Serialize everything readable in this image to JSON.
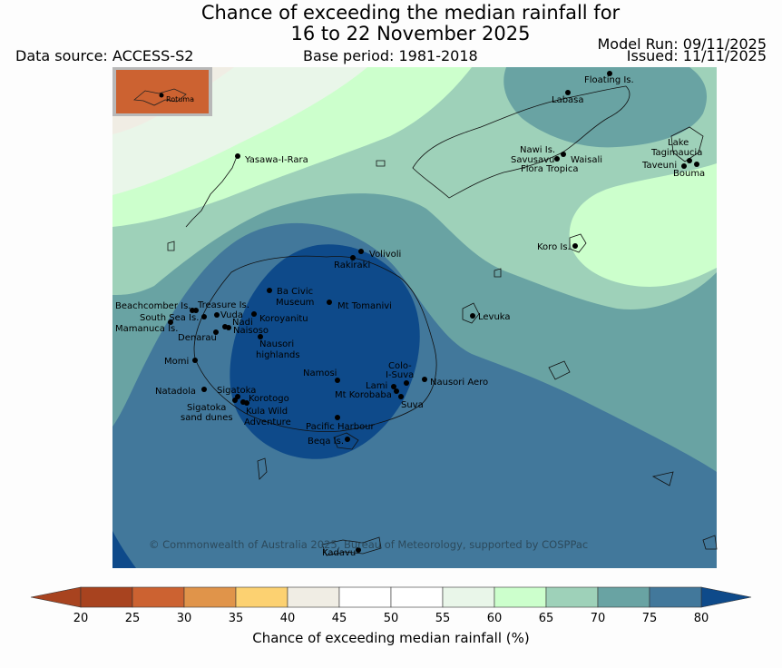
{
  "title": {
    "line1": "Chance of exceeding the median rainfall for",
    "line2": "16 to 22 November 2025"
  },
  "header": {
    "data_source": "Data source: ACCESS-S2",
    "base_period": "Base period: 1981-2018",
    "model_run": "Model Run: 09/11/2025",
    "issued": "Issued: 11/11/2025"
  },
  "inset": {
    "label": "Rotuma"
  },
  "places": [
    {
      "id": "floating-is",
      "label": "Floating Is."
    },
    {
      "id": "labasa",
      "label": "Labasa"
    },
    {
      "id": "nawi-is",
      "label": "Nawi Is."
    },
    {
      "id": "savusavu",
      "label": "Savusavu"
    },
    {
      "id": "waisali",
      "label": "Waisali"
    },
    {
      "id": "flora-tropica",
      "label": "Flora Tropica"
    },
    {
      "id": "lake-tagimaucia",
      "label": "Lake Tagimaucia"
    },
    {
      "id": "taveuni",
      "label": "Taveuni"
    },
    {
      "id": "bouma",
      "label": "Bouma"
    },
    {
      "id": "yasawa-i-rara",
      "label": "Yasawa-I-Rara"
    },
    {
      "id": "koro-is",
      "label": "Koro Is."
    },
    {
      "id": "volivoli",
      "label": "Volivoli"
    },
    {
      "id": "rakiraki",
      "label": "Rakiraki"
    },
    {
      "id": "ba-civic-museum",
      "label": "Ba Civic Museum"
    },
    {
      "id": "mt-tomanivi",
      "label": "Mt Tomanivi"
    },
    {
      "id": "beachcomber-is",
      "label": "Beachcomber Is."
    },
    {
      "id": "treasure-is",
      "label": "Treasure Is."
    },
    {
      "id": "south-sea-is",
      "label": "South Sea Is."
    },
    {
      "id": "vuda",
      "label": "Vuda"
    },
    {
      "id": "nadi",
      "label": "Nadi"
    },
    {
      "id": "koroyanitu",
      "label": "Koroyanitu"
    },
    {
      "id": "mamanuca-is",
      "label": "Mamanuca Is."
    },
    {
      "id": "naisoso",
      "label": "Naisoso"
    },
    {
      "id": "denarau",
      "label": "Denarau"
    },
    {
      "id": "nausori-highlands",
      "label": "Nausori highlands"
    },
    {
      "id": "levuka",
      "label": "Levuka"
    },
    {
      "id": "momi",
      "label": "Momi"
    },
    {
      "id": "namosi",
      "label": "Namosi"
    },
    {
      "id": "colo-i-suva",
      "label": "Colo-I-Suva"
    },
    {
      "id": "lami",
      "label": "Lami"
    },
    {
      "id": "nausori-aero",
      "label": "Nausori Aero"
    },
    {
      "id": "natadola",
      "label": "Natadola"
    },
    {
      "id": "sigatoka",
      "label": "Sigatoka"
    },
    {
      "id": "korotogo",
      "label": "Korotogo"
    },
    {
      "id": "mt-korobaba",
      "label": "Mt Korobaba"
    },
    {
      "id": "suva",
      "label": "Suva"
    },
    {
      "id": "sigatoka-sand-dunes",
      "label": "Sigatoka sand dunes"
    },
    {
      "id": "kula-wild-adventure",
      "label": "Kula Wild Adventure"
    },
    {
      "id": "pacific-harbour",
      "label": "Pacific Harbour"
    },
    {
      "id": "beqa-is",
      "label": "Beqa Is."
    },
    {
      "id": "kadavu",
      "label": "Kadavu"
    }
  ],
  "copyright": "© Commonwealth of Australia 2025, Bureau of Meteorology, supported by COSPPac",
  "colorbar": {
    "title": "Chance of exceeding median rainfall (%)",
    "ticks": [
      "20",
      "25",
      "30",
      "35",
      "40",
      "45",
      "50",
      "55",
      "60",
      "65",
      "70",
      "75",
      "80"
    ],
    "colors": [
      "#a8431f",
      "#cc6231",
      "#e0944a",
      "#fcd171",
      "#f0ede4",
      "#ffffff",
      "#ffffff",
      "#e9f6e9",
      "#ccffcc",
      "#9ed1b9",
      "#69a3a3",
      "#42789b",
      "#0e4a8a"
    ]
  },
  "contours": {
    "55-60": "#e9f6e9",
    "60-65": "#ccffcc",
    "65-70": "#9ed1b9",
    "70-75": "#69a3a3",
    "75-80": "#42789b",
    "80+": "#0e4a8a"
  }
}
